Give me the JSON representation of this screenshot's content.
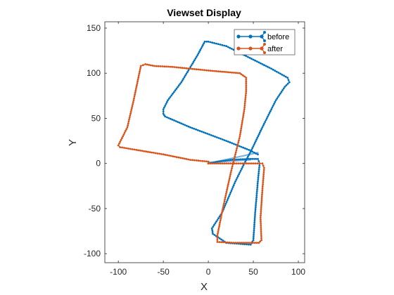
{
  "chart_data": {
    "type": "line",
    "title": "Viewset Display",
    "xlabel": "X",
    "ylabel": "Y",
    "xlim": [
      -115,
      107
    ],
    "ylim": [
      -110,
      157
    ],
    "xticks": [
      -100,
      -50,
      0,
      50,
      100
    ],
    "yticks": [
      -100,
      -50,
      0,
      50,
      100,
      150
    ],
    "legend_position": "top-right",
    "series": [
      {
        "name": "before",
        "color": "#0072BD",
        "points": [
          [
            0,
            0
          ],
          [
            10,
            2
          ],
          [
            25,
            4
          ],
          [
            45,
            5
          ],
          [
            55,
            5
          ],
          [
            57,
            0
          ],
          [
            55,
            -20
          ],
          [
            52,
            -55
          ],
          [
            50,
            -85
          ],
          [
            47,
            -90
          ],
          [
            20,
            -88
          ],
          [
            5,
            -78
          ],
          [
            4,
            -72
          ],
          [
            15,
            -55
          ],
          [
            30,
            -20
          ],
          [
            40,
            0
          ],
          [
            48,
            15
          ],
          [
            60,
            40
          ],
          [
            75,
            70
          ],
          [
            85,
            85
          ],
          [
            90,
            90
          ],
          [
            88,
            95
          ],
          [
            70,
            105
          ],
          [
            40,
            120
          ],
          [
            20,
            130
          ],
          [
            0,
            135
          ],
          [
            -4,
            135
          ],
          [
            -12,
            120
          ],
          [
            -30,
            90
          ],
          [
            -45,
            70
          ],
          [
            -50,
            60
          ],
          [
            -50,
            55
          ],
          [
            -48,
            52
          ],
          [
            -20,
            40
          ],
          [
            20,
            25
          ],
          [
            45,
            15
          ],
          [
            55,
            10
          ]
        ]
      },
      {
        "name": "after",
        "color": "#D95319",
        "points": [
          [
            0,
            0
          ],
          [
            20,
            0
          ],
          [
            45,
            0
          ],
          [
            57,
            0
          ],
          [
            60,
            0
          ],
          [
            62,
            -5
          ],
          [
            60,
            -30
          ],
          [
            58,
            -60
          ],
          [
            59,
            -85
          ],
          [
            56,
            -88
          ],
          [
            30,
            -88
          ],
          [
            10,
            -87
          ],
          [
            10,
            -80
          ],
          [
            15,
            -55
          ],
          [
            25,
            -10
          ],
          [
            30,
            10
          ],
          [
            35,
            30
          ],
          [
            40,
            60
          ],
          [
            42,
            80
          ],
          [
            42,
            95
          ],
          [
            35,
            100
          ],
          [
            0,
            103
          ],
          [
            -40,
            107
          ],
          [
            -60,
            108
          ],
          [
            -70,
            110
          ],
          [
            -75,
            108
          ],
          [
            -83,
            70
          ],
          [
            -90,
            40
          ],
          [
            -100,
            20
          ],
          [
            -98,
            18
          ],
          [
            -80,
            15
          ],
          [
            -50,
            10
          ],
          [
            -20,
            4
          ],
          [
            0,
            2
          ]
        ]
      }
    ],
    "connectors": [
      {
        "color": "#7FB3DE",
        "points": [
          [
            0,
            0
          ],
          [
            55,
            12
          ]
        ]
      },
      {
        "color": "#7FB3DE",
        "points": [
          [
            0,
            1
          ],
          [
            47,
            4
          ]
        ]
      }
    ]
  }
}
